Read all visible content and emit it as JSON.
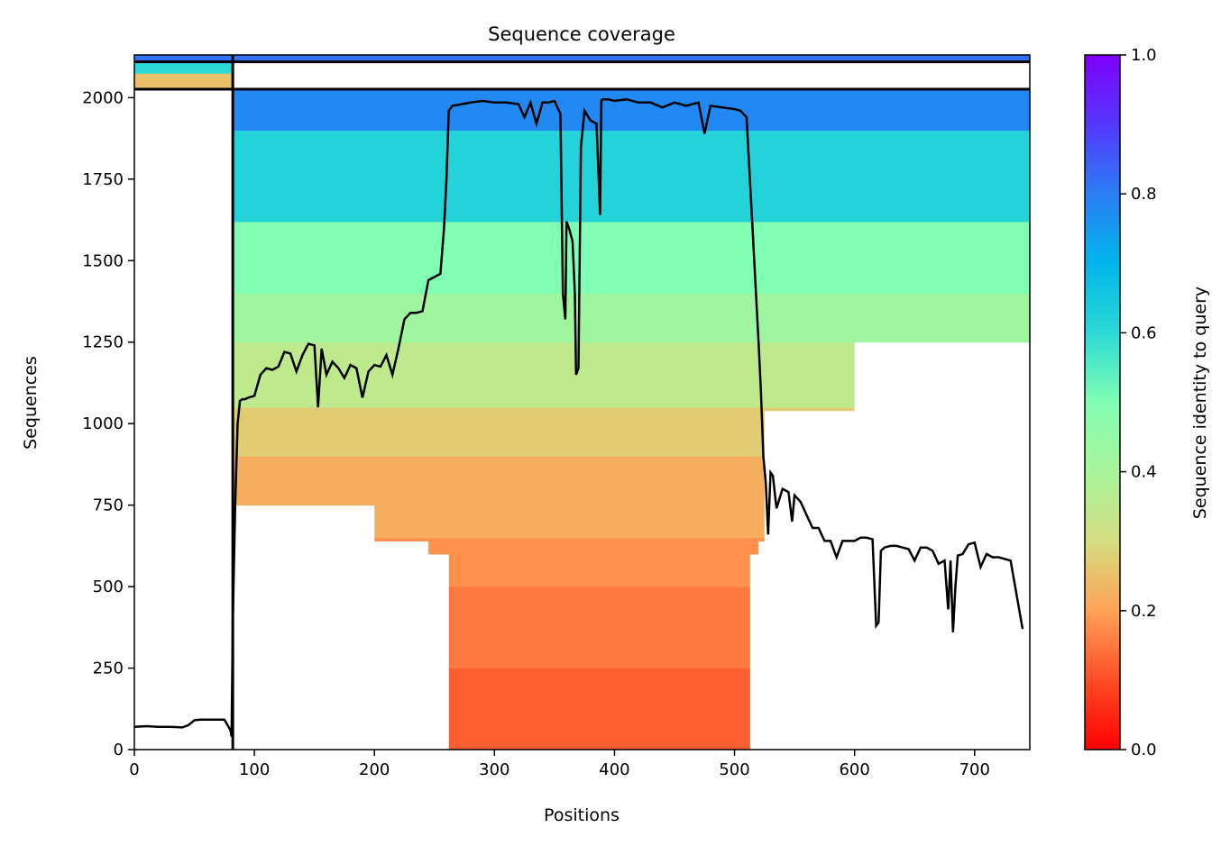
{
  "chart_data": {
    "type": "heatmap",
    "title": "Sequence coverage",
    "xlabel": "Positions",
    "ylabel": "Sequences",
    "xlim": [
      0,
      746
    ],
    "ylim": [
      0,
      2131
    ],
    "xticks": [
      0,
      100,
      200,
      300,
      400,
      500,
      600,
      700
    ],
    "yticks": [
      0,
      250,
      500,
      750,
      1000,
      1250,
      1500,
      1750,
      2000
    ],
    "colorbar": {
      "label": "Sequence identity to query",
      "range": [
        0,
        1
      ],
      "ticks": [
        "0.0",
        "0.2",
        "0.4",
        "0.6",
        "0.8",
        "1.0"
      ],
      "colormap": "rainbow_r"
    },
    "chain_boundaries": {
      "x": [
        82
      ],
      "y": [
        2026,
        2110
      ]
    },
    "identity_bands": [
      {
        "y0": 0,
        "y1": 250,
        "identity": 0.12
      },
      {
        "y0": 250,
        "y1": 500,
        "identity": 0.15
      },
      {
        "y0": 500,
        "y1": 650,
        "identity": 0.18
      },
      {
        "y0": 650,
        "y1": 900,
        "identity": 0.22
      },
      {
        "y0": 900,
        "y1": 1050,
        "identity": 0.27
      },
      {
        "y0": 1050,
        "y1": 1250,
        "identity": 0.35
      },
      {
        "y0": 1250,
        "y1": 1400,
        "identity": 0.42
      },
      {
        "y0": 1400,
        "y1": 1620,
        "identity": 0.5
      },
      {
        "y0": 1620,
        "y1": 1900,
        "identity": 0.62
      },
      {
        "y0": 1900,
        "y1": 2026,
        "identity": 0.78
      },
      {
        "y0": 2026,
        "y1": 2075,
        "identity": 0.25
      },
      {
        "y0": 2075,
        "y1": 2110,
        "identity": 0.6
      },
      {
        "y0": 2110,
        "y1": 2131,
        "identity": 0.82
      }
    ],
    "coverage_blocks": [
      {
        "y0": 0,
        "y1": 600,
        "x0": 262,
        "x1": 513
      },
      {
        "y0": 600,
        "y1": 640,
        "x0": 245,
        "x1": 520
      },
      {
        "y0": 640,
        "y1": 750,
        "x0": 200,
        "x1": 525
      },
      {
        "y0": 750,
        "y1": 900,
        "x0": 82,
        "x1": 525
      },
      {
        "y0": 900,
        "y1": 1040,
        "x0": 82,
        "x1": 525
      },
      {
        "y0": 1040,
        "y1": 1250,
        "x0": 82,
        "x1": 600
      },
      {
        "y0": 1250,
        "y1": 1400,
        "x0": 82,
        "x1": 746
      },
      {
        "y0": 1400,
        "y1": 2026,
        "x0": 82,
        "x1": 746
      },
      {
        "y0": 2026,
        "y1": 2075,
        "x0": 0,
        "x1": 82
      },
      {
        "y0": 2075,
        "y1": 2110,
        "x0": 0,
        "x1": 82
      },
      {
        "y0": 2110,
        "y1": 2131,
        "x0": 0,
        "x1": 746
      }
    ],
    "coverage_line": {
      "x": [
        0,
        10,
        20,
        30,
        40,
        45,
        50,
        55,
        60,
        70,
        75,
        80,
        81,
        82,
        84,
        86,
        88,
        90,
        92,
        95,
        100,
        105,
        110,
        115,
        120,
        125,
        130,
        135,
        140,
        145,
        150,
        153,
        156,
        160,
        165,
        170,
        175,
        180,
        185,
        190,
        195,
        200,
        205,
        210,
        215,
        220,
        225,
        230,
        235,
        240,
        245,
        250,
        255,
        258,
        260,
        262,
        265,
        270,
        280,
        290,
        300,
        310,
        320,
        325,
        330,
        335,
        340,
        345,
        350,
        355,
        357,
        359,
        360,
        362,
        365,
        367,
        368,
        370,
        372,
        375,
        380,
        385,
        388,
        389,
        390,
        395,
        400,
        410,
        420,
        430,
        440,
        450,
        460,
        470,
        475,
        480,
        490,
        500,
        505,
        510,
        515,
        520,
        522,
        524,
        526,
        528,
        530,
        532,
        535,
        540,
        545,
        548,
        550,
        555,
        560,
        565,
        570,
        575,
        580,
        585,
        590,
        595,
        600,
        605,
        610,
        615,
        618,
        620,
        622,
        625,
        630,
        635,
        640,
        645,
        650,
        655,
        660,
        665,
        670,
        675,
        678,
        680,
        682,
        684,
        686,
        690,
        695,
        700,
        705,
        710,
        715,
        720,
        730,
        740,
        746
      ],
      "y": [
        70,
        72,
        70,
        70,
        68,
        75,
        90,
        92,
        92,
        92,
        92,
        60,
        40,
        400,
        750,
        1000,
        1070,
        1075,
        1075,
        1080,
        1085,
        1150,
        1170,
        1165,
        1175,
        1220,
        1215,
        1160,
        1210,
        1245,
        1240,
        1050,
        1230,
        1150,
        1190,
        1170,
        1140,
        1180,
        1170,
        1080,
        1160,
        1180,
        1175,
        1210,
        1150,
        1230,
        1320,
        1340,
        1340,
        1345,
        1440,
        1450,
        1460,
        1600,
        1750,
        1960,
        1975,
        1978,
        1985,
        1990,
        1985,
        1985,
        1980,
        1940,
        1985,
        1920,
        1985,
        1985,
        1990,
        1950,
        1400,
        1320,
        1620,
        1600,
        1560,
        1400,
        1150,
        1170,
        1850,
        1960,
        1930,
        1920,
        1640,
        1990,
        1995,
        1995,
        1990,
        1995,
        1985,
        1985,
        1970,
        1985,
        1975,
        1985,
        1890,
        1975,
        1970,
        1965,
        1960,
        1940,
        1600,
        1250,
        1100,
        900,
        820,
        660,
        850,
        840,
        740,
        800,
        790,
        700,
        780,
        760,
        720,
        680,
        680,
        640,
        640,
        590,
        640,
        640,
        640,
        650,
        650,
        645,
        380,
        390,
        610,
        620,
        625,
        625,
        620,
        615,
        580,
        620,
        620,
        610,
        570,
        580,
        430,
        580,
        360,
        500,
        595,
        600,
        630,
        635,
        560,
        600,
        590,
        590,
        580,
        370
      ]
    }
  }
}
